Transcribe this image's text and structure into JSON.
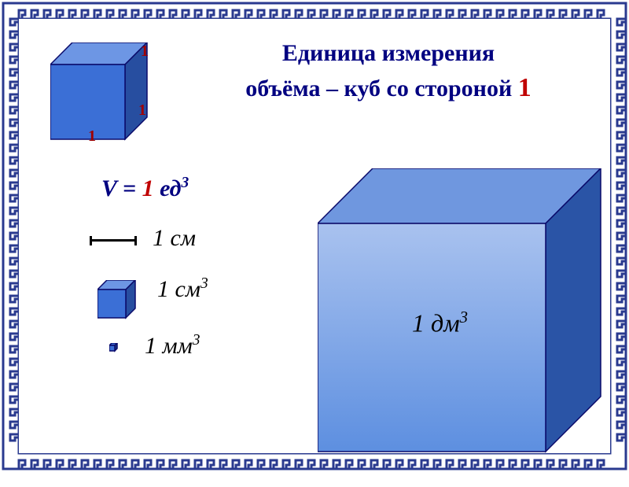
{
  "border": {
    "stroke": "#2a3a8f",
    "spacing": 16,
    "thickness": 3
  },
  "title": {
    "line1": "Единица измерения",
    "line2_a": "объёма – куб со стороной ",
    "line2_one": "1",
    "color": "#000080",
    "one_color": "#c00000",
    "fontsize": 30
  },
  "small_cube": {
    "size": 95,
    "depth": 28,
    "face_fill": "#3b6fd6",
    "top_fill": "#6d96e4",
    "side_fill": "#274ea0",
    "stroke": "#0a0a6a",
    "labels": {
      "a": "1",
      "b": "1",
      "c": "1",
      "color": "#a00000"
    }
  },
  "formula": {
    "v": "V",
    "eq": " = ",
    "one": "1",
    "unit": " ед",
    "sup": "3"
  },
  "segment": {
    "label": "1 см"
  },
  "tiny_cube": {
    "size": 36,
    "depth": 12,
    "face_fill": "#3b6fd6",
    "top_fill": "#6d96e4",
    "side_fill": "#274ea0",
    "stroke": "#0a0a6a",
    "label_base": "1 см",
    "label_sup": "3"
  },
  "dot_cube": {
    "size": 7,
    "depth": 3,
    "fill": "#3b6fd6",
    "label_base": "1 мм",
    "label_sup": "3"
  },
  "big_cube": {
    "size": 290,
    "depth": 70,
    "face_fill_top": "#a9c2ef",
    "face_fill_bot": "#5d8fe0",
    "top_fill": "#6f97df",
    "side_fill": "#2a54a6",
    "stroke": "#0a0a6a",
    "label_base": "1 дм",
    "label_sup": "3"
  }
}
